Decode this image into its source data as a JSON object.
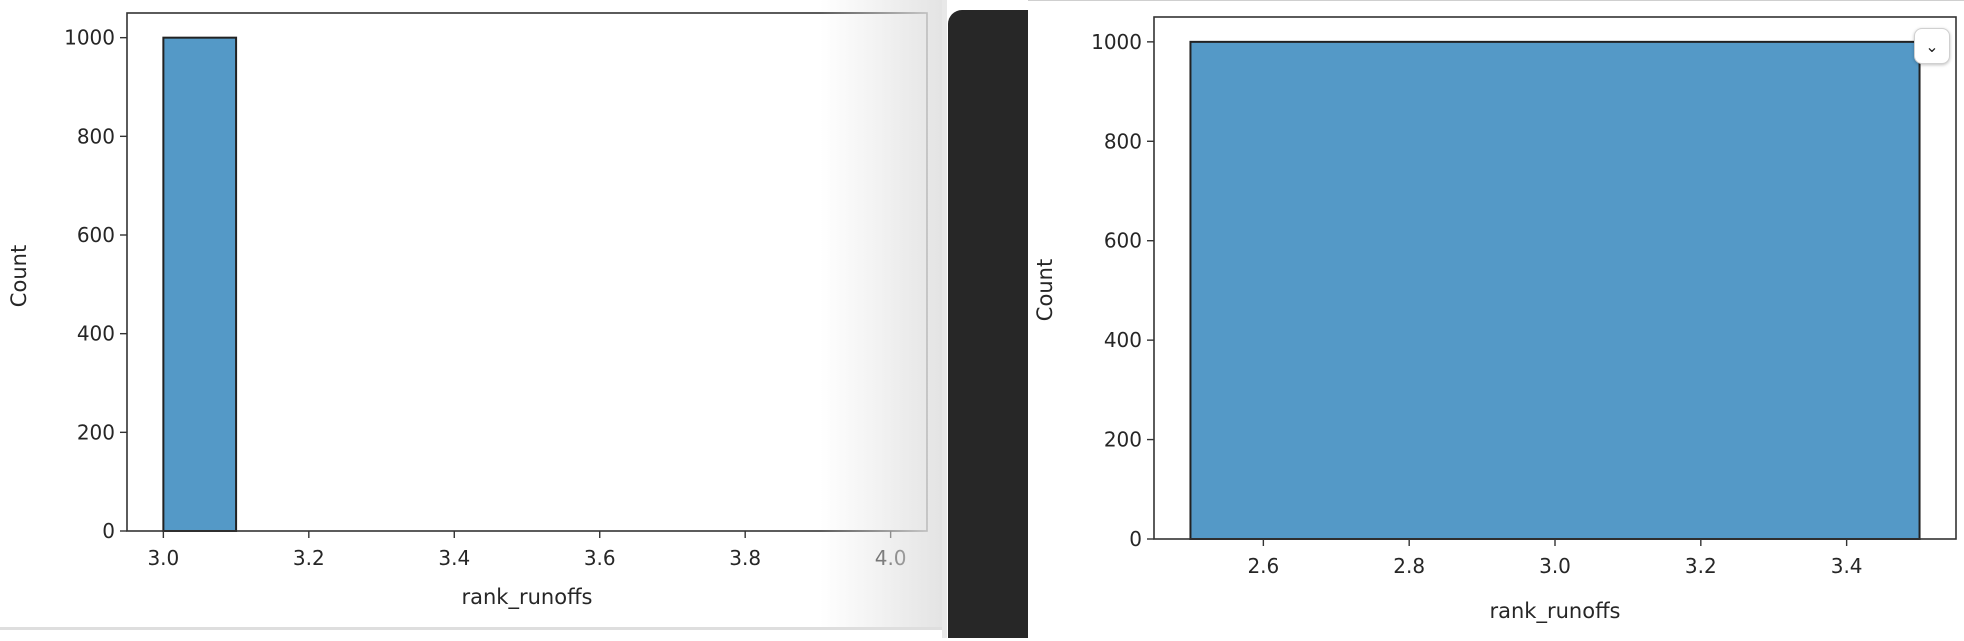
{
  "chart_data": [
    {
      "type": "bar",
      "bins": [
        [
          3.0,
          3.1
        ]
      ],
      "values": [
        1000
      ],
      "xlim": [
        2.95,
        4.05
      ],
      "ylim": [
        0,
        1050
      ],
      "xticks": [
        3.0,
        3.2,
        3.4,
        3.6,
        3.8,
        4.0
      ],
      "xtick_labels": [
        "3.0",
        "3.2",
        "3.4",
        "3.6",
        "3.8",
        "4.0"
      ],
      "yticks": [
        0,
        200,
        400,
        600,
        800,
        1000
      ],
      "ytick_labels": [
        "0",
        "200",
        "400",
        "600",
        "800",
        "1000"
      ],
      "xlabel": "rank_runoffs",
      "ylabel": "Count",
      "title": "",
      "grid": false,
      "bar_color": "#5499c7",
      "edge_color": "#222222"
    },
    {
      "type": "bar",
      "bins": [
        [
          2.5,
          3.5
        ]
      ],
      "values": [
        1000
      ],
      "xlim": [
        2.45,
        3.55
      ],
      "ylim": [
        0,
        1050
      ],
      "xticks": [
        2.6,
        2.8,
        3.0,
        3.2,
        3.4
      ],
      "xtick_labels": [
        "2.6",
        "2.8",
        "3.0",
        "3.2",
        "3.4"
      ],
      "yticks": [
        0,
        200,
        400,
        600,
        800,
        1000
      ],
      "ytick_labels": [
        "0",
        "200",
        "400",
        "600",
        "800",
        "1000"
      ],
      "xlabel": "rank_runoffs",
      "ylabel": "Count",
      "title": "",
      "grid": false,
      "bar_color": "#5499c7",
      "edge_color": "#222222"
    }
  ],
  "ui": {
    "collapse_icon": "chevron-down-icon",
    "collapse_glyph": "⌄"
  }
}
